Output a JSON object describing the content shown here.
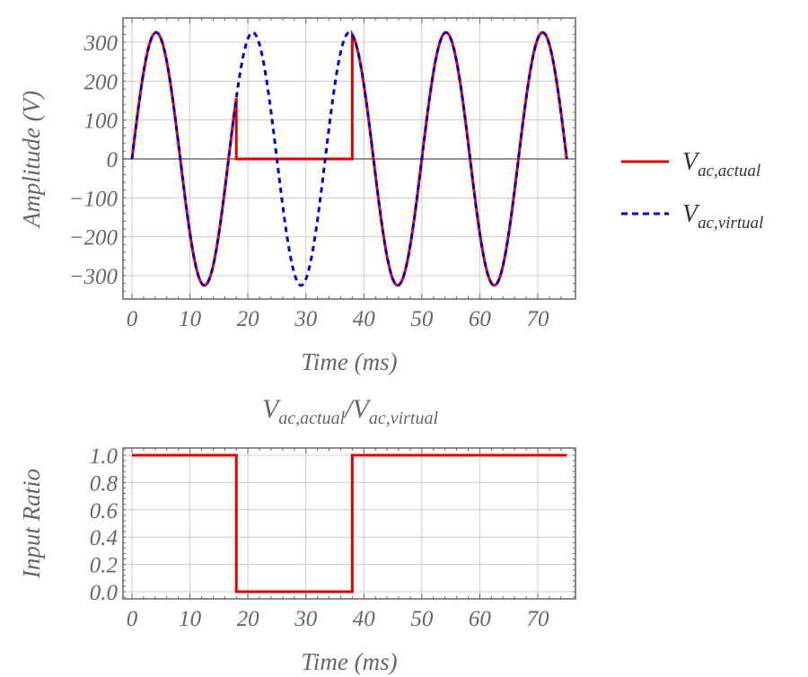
{
  "chart_data": [
    {
      "type": "line",
      "xlabel": "Time (ms)",
      "ylabel": "Amplitude (V)",
      "xlim": [
        -1.5,
        76
      ],
      "ylim": [
        -365,
        365
      ],
      "xticks": [
        0,
        10,
        20,
        30,
        40,
        50,
        60,
        70
      ],
      "yticks": [
        300,
        200,
        100,
        0,
        -100,
        -200,
        -300
      ],
      "ytick_labels": [
        "300",
        "200",
        "100",
        "0",
        "−100",
        "−200",
        "−300"
      ],
      "grid": true,
      "legend_position": "right",
      "series": [
        {
          "name": "V_{ac,actual}",
          "label_main": "V",
          "label_sub": "ac,actual",
          "color": "#e00000",
          "style": "solid",
          "amplitude": 325,
          "frequency_hz": 60,
          "x_range": [
            0,
            75
          ],
          "zero_interval": [
            18,
            38
          ]
        },
        {
          "name": "V_{ac,virtual}",
          "label_main": "V",
          "label_sub": "ac,virtual",
          "color": "#0000dd",
          "style": "dashed",
          "amplitude": 325,
          "frequency_hz": 60,
          "x_range": [
            0,
            75
          ]
        }
      ]
    },
    {
      "type": "line",
      "title_main1": "V",
      "title_sub1": "ac,actual",
      "title_main2": "V",
      "title_sub2": "ac,virtual",
      "xlabel": "Time (ms)",
      "ylabel": "Input Ratio",
      "xlim": [
        -1.5,
        76
      ],
      "ylim": [
        -0.05,
        1.05
      ],
      "xticks": [
        0,
        10,
        20,
        30,
        40,
        50,
        60,
        70
      ],
      "yticks": [
        1.0,
        0.8,
        0.6,
        0.4,
        0.2,
        0.0
      ],
      "ytick_labels": [
        "1.0",
        "0.8",
        "0.6",
        "0.4",
        "0.2",
        "0.0"
      ],
      "grid": true,
      "series": [
        {
          "color": "#e00000",
          "style": "solid",
          "x": [
            0,
            18,
            18,
            38,
            38,
            75
          ],
          "y": [
            1,
            1,
            0,
            0,
            1,
            1
          ]
        }
      ]
    }
  ]
}
